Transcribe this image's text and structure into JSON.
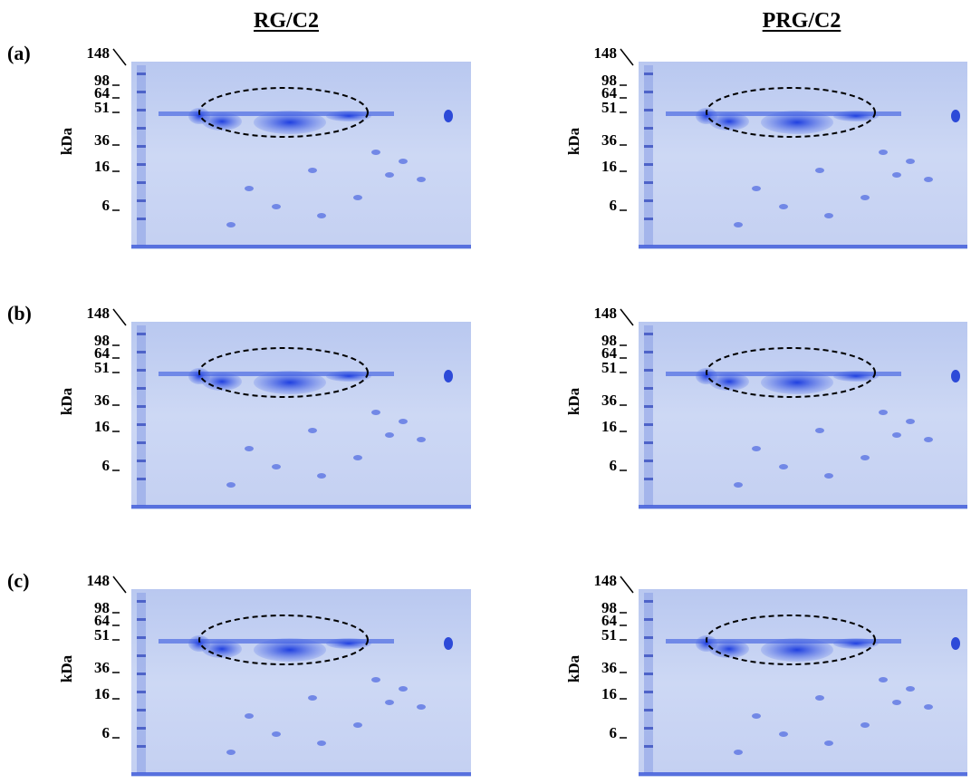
{
  "columns": [
    "RG/C2",
    "PRG/C2"
  ],
  "rows": [
    {
      "label": "(a)",
      "gels": [
        {
          "axis_label": "kDa",
          "markers": [
            "148",
            "98",
            "64",
            "51",
            "36",
            "16",
            "6"
          ]
        },
        {
          "axis_label": "kDa",
          "markers": [
            "148",
            "98",
            "64",
            "51",
            "36",
            "16",
            "6"
          ]
        }
      ]
    },
    {
      "label": "(b)",
      "gels": [
        {
          "axis_label": "kDa",
          "markers": [
            "148",
            "98",
            "64",
            "51",
            "36",
            "16",
            "6"
          ]
        },
        {
          "axis_label": "kDa",
          "markers": [
            "148",
            "98",
            "64",
            "51",
            "36",
            "16",
            "6"
          ]
        }
      ]
    },
    {
      "label": "(c)",
      "gels": [
        {
          "axis_label": "kDa",
          "markers": [
            "148",
            "98",
            "64",
            "51",
            "36",
            "16",
            "6"
          ]
        },
        {
          "axis_label": "kDa",
          "markers": [
            "148",
            "98",
            "64",
            "51",
            "36",
            "16",
            "6"
          ]
        }
      ]
    }
  ]
}
